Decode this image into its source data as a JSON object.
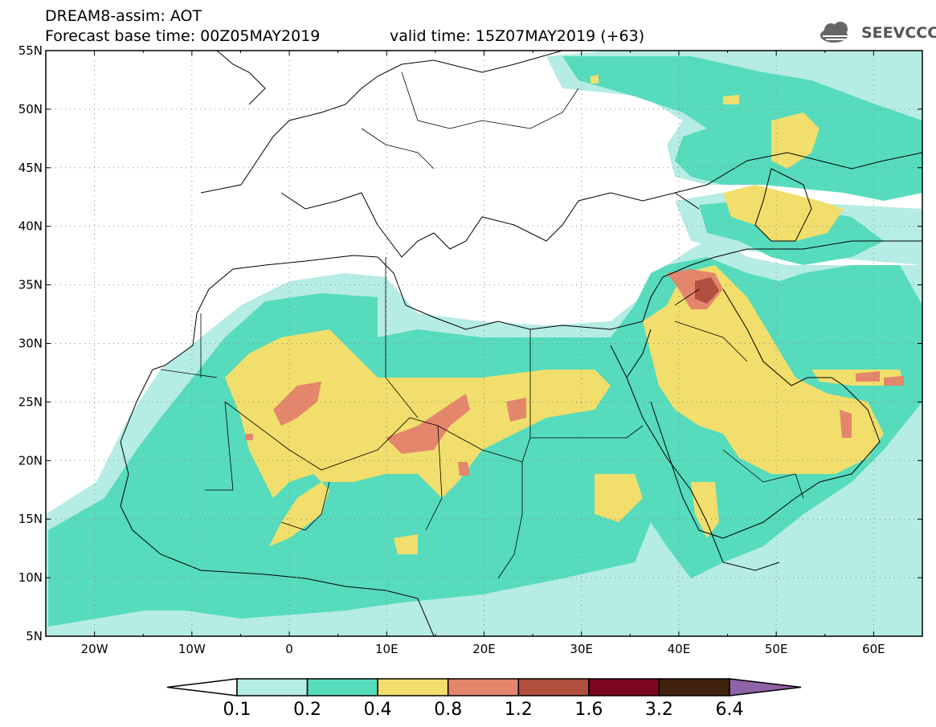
{
  "header": {
    "title": "DREAM8-assim: AOT",
    "base_time_label": "Forecast base time: 00Z05MAY2019",
    "valid_time_label": "valid time: 15Z07MAY2019 (+63)"
  },
  "logo": {
    "text": "SEEVCCC",
    "icon": "cloud-icon"
  },
  "map": {
    "projection": "lat-lon",
    "lon_range": [
      -25,
      65
    ],
    "lat_range": [
      5,
      55
    ],
    "lat_ticks": [
      "55N",
      "50N",
      "45N",
      "40N",
      "35N",
      "30N",
      "25N",
      "20N",
      "15N",
      "10N",
      "5N"
    ],
    "lon_ticks": [
      "20W",
      "10W",
      "0",
      "10E",
      "20E",
      "30E",
      "40E",
      "50E",
      "60E"
    ],
    "grid": "dotted",
    "colors": {
      "0.1-0.2": "#b5ece3",
      "0.2-0.4": "#56dbbc",
      "0.4-0.8": "#f1de6c",
      "0.8-1.2": "#e4866b",
      "1.2-1.6": "#b14f3f",
      "1.6-3.2": "#7d0720",
      "3.2-6.4": "#40220f",
      ">6.4": "#8f63a8"
    }
  },
  "colorbar": {
    "labels": [
      "0.1",
      "0.2",
      "0.4",
      "0.8",
      "1.2",
      "1.6",
      "3.2",
      "6.4"
    ],
    "colors": [
      "#ffffff",
      "#b5ece3",
      "#56dbbc",
      "#f1de6c",
      "#e4866b",
      "#b14f3f",
      "#7d0720",
      "#40220f",
      "#8f63a8"
    ]
  }
}
